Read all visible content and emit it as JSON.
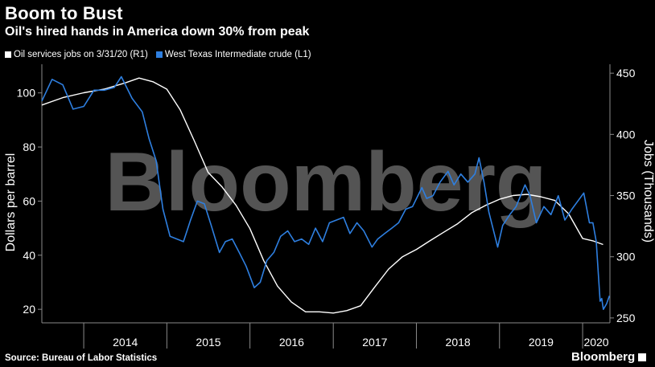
{
  "header": {
    "title": "Boom to Bust",
    "subtitle": "Oil's hired hands in America down 30% from peak"
  },
  "footer": {
    "source": "Source: Bureau of Labor Statistics",
    "brand": "Bloomberg"
  },
  "watermark": "Bloomberg",
  "colors": {
    "background": "#000000",
    "wti": "#2e7fe0",
    "jobs": "#ffffff",
    "axis": "#8a8a8a"
  },
  "chart_data": {
    "type": "line",
    "x_tick_labels": [
      "2014",
      "2015",
      "2016",
      "2017",
      "2018",
      "2019",
      "2020"
    ],
    "xlim": [
      "2013-07-01",
      "2020-04-30"
    ],
    "left_axis": {
      "label": "Dollars per barrel",
      "ylim": [
        15,
        110
      ],
      "ticks": [
        20,
        40,
        60,
        80,
        100
      ]
    },
    "right_axis": {
      "label": "Jobs (Thousands)",
      "ylim": [
        246,
        456
      ],
      "ticks": [
        250,
        300,
        350,
        400,
        450
      ]
    },
    "legend": {
      "position": "top-left"
    },
    "grid": false,
    "series": [
      {
        "name": "Oil services jobs on 3/31/20 (R1)",
        "axis": "right",
        "color": "#ffffff",
        "points": [
          [
            "2013-07-01",
            424
          ],
          [
            "2013-10-01",
            430
          ],
          [
            "2014-01-01",
            434
          ],
          [
            "2014-04-01",
            437
          ],
          [
            "2014-07-01",
            442
          ],
          [
            "2014-09-01",
            446
          ],
          [
            "2014-11-01",
            443
          ],
          [
            "2015-01-01",
            437
          ],
          [
            "2015-03-01",
            420
          ],
          [
            "2015-05-01",
            395
          ],
          [
            "2015-07-01",
            369
          ],
          [
            "2015-09-01",
            357
          ],
          [
            "2015-11-01",
            342
          ],
          [
            "2016-01-01",
            323
          ],
          [
            "2016-03-01",
            297
          ],
          [
            "2016-05-01",
            276
          ],
          [
            "2016-07-01",
            263
          ],
          [
            "2016-09-01",
            255
          ],
          [
            "2016-11-01",
            255
          ],
          [
            "2017-01-01",
            254
          ],
          [
            "2017-03-01",
            256
          ],
          [
            "2017-05-01",
            260
          ],
          [
            "2017-07-01",
            275
          ],
          [
            "2017-09-01",
            290
          ],
          [
            "2017-11-01",
            300
          ],
          [
            "2018-01-01",
            306
          ],
          [
            "2018-03-01",
            313
          ],
          [
            "2018-05-01",
            320
          ],
          [
            "2018-07-01",
            327
          ],
          [
            "2018-09-01",
            336
          ],
          [
            "2018-11-01",
            342
          ],
          [
            "2019-01-01",
            347
          ],
          [
            "2019-03-01",
            350
          ],
          [
            "2019-05-01",
            351
          ],
          [
            "2019-07-01",
            349
          ],
          [
            "2019-09-01",
            346
          ],
          [
            "2019-11-01",
            335
          ],
          [
            "2020-01-01",
            315
          ],
          [
            "2020-02-15",
            313
          ],
          [
            "2020-03-31",
            310
          ]
        ]
      },
      {
        "name": "West Texas Intermediate crude (L1)",
        "axis": "left",
        "color": "#2e7fe0",
        "points": [
          [
            "2013-07-01",
            97
          ],
          [
            "2013-08-15",
            105
          ],
          [
            "2013-10-01",
            103
          ],
          [
            "2013-11-15",
            94
          ],
          [
            "2014-01-01",
            95
          ],
          [
            "2014-02-15",
            101
          ],
          [
            "2014-04-01",
            101
          ],
          [
            "2014-05-15",
            102
          ],
          [
            "2014-06-15",
            106
          ],
          [
            "2014-08-01",
            98
          ],
          [
            "2014-09-15",
            93
          ],
          [
            "2014-10-15",
            83
          ],
          [
            "2014-11-15",
            75
          ],
          [
            "2014-12-15",
            57
          ],
          [
            "2015-01-15",
            47
          ],
          [
            "2015-03-15",
            45
          ],
          [
            "2015-04-15",
            53
          ],
          [
            "2015-05-15",
            60
          ],
          [
            "2015-06-15",
            59
          ],
          [
            "2015-07-15",
            51
          ],
          [
            "2015-08-20",
            41
          ],
          [
            "2015-09-15",
            45
          ],
          [
            "2015-10-15",
            46
          ],
          [
            "2015-11-15",
            41
          ],
          [
            "2015-12-15",
            36
          ],
          [
            "2016-01-20",
            28
          ],
          [
            "2016-02-15",
            30
          ],
          [
            "2016-03-15",
            38
          ],
          [
            "2016-04-15",
            41
          ],
          [
            "2016-05-15",
            47
          ],
          [
            "2016-06-15",
            49
          ],
          [
            "2016-07-15",
            45
          ],
          [
            "2016-08-15",
            46
          ],
          [
            "2016-09-15",
            44
          ],
          [
            "2016-10-15",
            50
          ],
          [
            "2016-11-15",
            45
          ],
          [
            "2016-12-15",
            52
          ],
          [
            "2017-01-15",
            53
          ],
          [
            "2017-02-15",
            54
          ],
          [
            "2017-03-15",
            48
          ],
          [
            "2017-04-15",
            52
          ],
          [
            "2017-05-15",
            49
          ],
          [
            "2017-06-20",
            43
          ],
          [
            "2017-07-15",
            46
          ],
          [
            "2017-08-15",
            48
          ],
          [
            "2017-09-15",
            50
          ],
          [
            "2017-10-15",
            52
          ],
          [
            "2017-11-15",
            57
          ],
          [
            "2017-12-15",
            58
          ],
          [
            "2018-01-25",
            65
          ],
          [
            "2018-02-15",
            61
          ],
          [
            "2018-03-15",
            62
          ],
          [
            "2018-04-15",
            67
          ],
          [
            "2018-05-20",
            71
          ],
          [
            "2018-06-15",
            66
          ],
          [
            "2018-07-15",
            70
          ],
          [
            "2018-08-15",
            67
          ],
          [
            "2018-09-15",
            70
          ],
          [
            "2018-10-03",
            76
          ],
          [
            "2018-10-25",
            67
          ],
          [
            "2018-11-15",
            56
          ],
          [
            "2018-12-24",
            43
          ],
          [
            "2019-01-15",
            51
          ],
          [
            "2019-02-15",
            55
          ],
          [
            "2019-03-15",
            58
          ],
          [
            "2019-04-23",
            66
          ],
          [
            "2019-05-15",
            62
          ],
          [
            "2019-06-12",
            52
          ],
          [
            "2019-07-15",
            58
          ],
          [
            "2019-08-15",
            55
          ],
          [
            "2019-09-16",
            62
          ],
          [
            "2019-10-15",
            53
          ],
          [
            "2019-11-15",
            57
          ],
          [
            "2020-01-06",
            63
          ],
          [
            "2020-01-31",
            52
          ],
          [
            "2020-02-15",
            52
          ],
          [
            "2020-03-01",
            45
          ],
          [
            "2020-03-10",
            33
          ],
          [
            "2020-03-18",
            23
          ],
          [
            "2020-03-25",
            24
          ],
          [
            "2020-04-01",
            20
          ],
          [
            "2020-04-15",
            22
          ],
          [
            "2020-04-28",
            25
          ]
        ]
      }
    ]
  }
}
